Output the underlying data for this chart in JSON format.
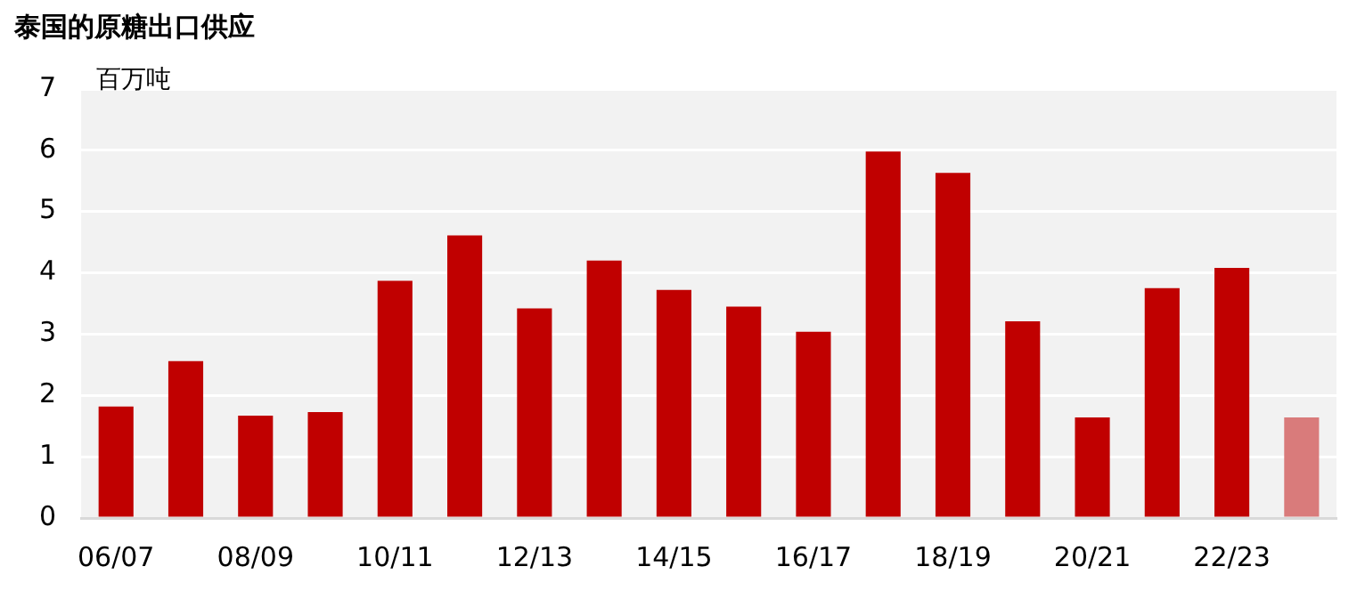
{
  "chart_data": {
    "type": "bar",
    "title": "泰国的原糖出口供应",
    "ylabel": "百万吨",
    "categories": [
      "06/07",
      null,
      "08/09",
      null,
      "10/11",
      null,
      "12/13",
      null,
      "14/15",
      null,
      "16/17",
      null,
      "18/19",
      null,
      "20/21",
      null,
      "22/23",
      null
    ],
    "values": [
      1.82,
      2.56,
      1.67,
      1.73,
      3.87,
      4.61,
      3.42,
      4.2,
      3.72,
      3.45,
      3.04,
      5.98,
      5.63,
      3.21,
      1.64,
      3.75,
      4.08,
      1.64
    ],
    "colors": [
      "#c00000",
      "#c00000",
      "#c00000",
      "#c00000",
      "#c00000",
      "#c00000",
      "#c00000",
      "#c00000",
      "#c00000",
      "#c00000",
      "#c00000",
      "#c00000",
      "#c00000",
      "#c00000",
      "#c00000",
      "#c00000",
      "#c00000",
      "#d97b7b"
    ],
    "ylim": [
      0,
      7
    ],
    "yticks": [
      0,
      1,
      2,
      3,
      4,
      5,
      6,
      7
    ],
    "grid": "y",
    "legend": false
  }
}
